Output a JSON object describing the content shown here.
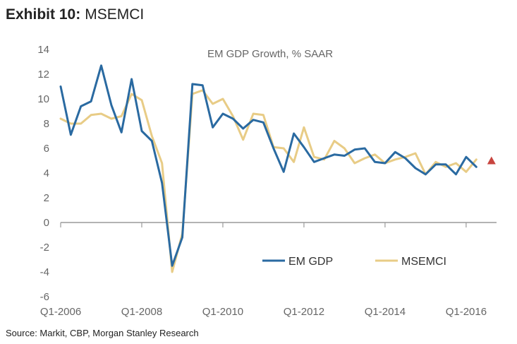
{
  "exhibit": {
    "label": "Exhibit 10:",
    "name": "MSEMCI"
  },
  "source": "Source: Markit, CBP, Morgan Stanley Research",
  "chart_data": {
    "type": "line",
    "title": "EM GDP Growth, % SAAR",
    "xlabel": "",
    "ylabel": "",
    "ylim": [
      -6,
      14
    ],
    "yticks": [
      -6,
      -4,
      -2,
      0,
      2,
      4,
      6,
      8,
      10,
      12,
      14
    ],
    "x_start": "Q1-2006",
    "x_tick_labels": [
      "Q1-2006",
      "Q1-2008",
      "Q1-2010",
      "Q1-2012",
      "Q1-2014",
      "Q1-2016"
    ],
    "x_tick_positions": [
      0,
      8,
      16,
      24,
      32,
      40
    ],
    "x_range": [
      0,
      43
    ],
    "legend_position": "bottom-right",
    "colors": {
      "em_gdp": "#2a6aa1",
      "msemci": "#e8cc86",
      "marker": "#c8453f",
      "axis": "#9a9a9a",
      "label": "#666666"
    },
    "series": [
      {
        "name": "EM GDP",
        "color": "#2a6aa1",
        "values": [
          11.0,
          7.1,
          9.4,
          9.8,
          12.7,
          9.5,
          7.3,
          11.6,
          7.4,
          6.6,
          3.2,
          -3.5,
          -1.2,
          11.2,
          11.1,
          7.7,
          8.8,
          8.4,
          7.6,
          8.3,
          8.1,
          6.0,
          4.1,
          7.2,
          6.1,
          4.9,
          5.2,
          5.5,
          5.4,
          5.9,
          6.0,
          4.9,
          4.8,
          5.7,
          5.2,
          4.4,
          3.9,
          4.7,
          4.7,
          3.9,
          5.3,
          4.5
        ]
      },
      {
        "name": "MSEMCI",
        "color": "#e8cc86",
        "values": [
          8.4,
          8.0,
          8.0,
          8.7,
          8.8,
          8.4,
          8.6,
          10.4,
          9.9,
          7.0,
          4.8,
          -4.0,
          -0.9,
          10.4,
          10.7,
          9.6,
          10.0,
          8.6,
          6.7,
          8.8,
          8.7,
          6.1,
          6.0,
          4.9,
          7.7,
          5.3,
          5.1,
          6.6,
          6.0,
          4.8,
          5.2,
          5.5,
          4.8,
          5.1,
          5.3,
          5.6,
          3.9,
          4.9,
          4.5,
          4.8,
          4.1,
          5.1
        ]
      }
    ],
    "markers": [
      {
        "name": "MSEMCI latest",
        "shape": "triangle",
        "x": 42.5,
        "y": 5.0,
        "color": "#c8453f"
      }
    ]
  }
}
